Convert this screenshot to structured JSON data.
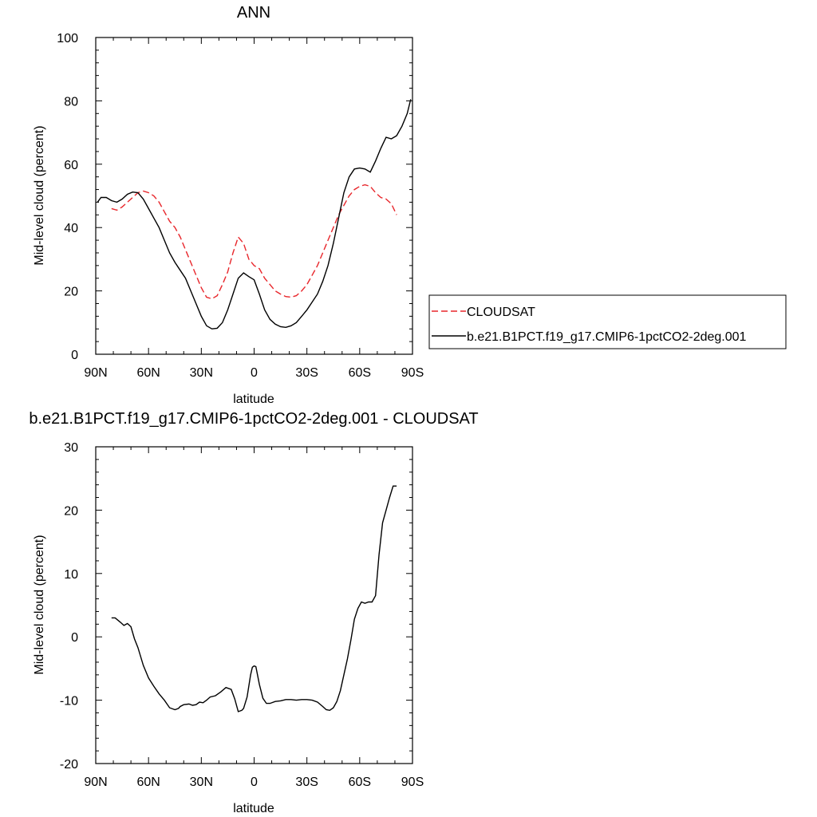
{
  "chart_data": [
    {
      "type": "line",
      "title": "ANN",
      "xlabel": "latitude",
      "ylabel": "Mid-level cloud (percent)",
      "xlim": [
        90,
        -90
      ],
      "ylim": [
        0,
        100
      ],
      "x_tick_values": [
        90,
        60,
        30,
        0,
        -30,
        -60,
        -90
      ],
      "x_tick_labels": [
        "90N",
        "60N",
        "30N",
        "0",
        "30S",
        "60S",
        "90S"
      ],
      "y_tick_values": [
        0,
        20,
        40,
        60,
        80,
        100
      ],
      "y_tick_labels": [
        "0",
        "20",
        "40",
        "60",
        "80",
        "100"
      ],
      "grid": false,
      "legend_position": "right",
      "series": [
        {
          "name": "CLOUDSAT",
          "color": "#e8262b",
          "dash": "dashed",
          "x": [
            81,
            78,
            75,
            72,
            69,
            66,
            63,
            60,
            57,
            54,
            51,
            48,
            45,
            42,
            39,
            36,
            33,
            30,
            27,
            24,
            21,
            18,
            15,
            12,
            9,
            6,
            3,
            0,
            -3,
            -6,
            -9,
            -12,
            -15,
            -18,
            -21,
            -24,
            -27,
            -30,
            -33,
            -36,
            -39,
            -42,
            -45,
            -48,
            -51,
            -54,
            -57,
            -60,
            -63,
            -66,
            -69,
            -72,
            -75,
            -78,
            -81
          ],
          "y": [
            46,
            45.5,
            46.5,
            48,
            49.5,
            51,
            51.5,
            51,
            50,
            48,
            45,
            42,
            40,
            37,
            33,
            29,
            25,
            21,
            18,
            17.5,
            18.5,
            22,
            26,
            32,
            37,
            35,
            30,
            28,
            27,
            24,
            22,
            20,
            19,
            18.2,
            18,
            18.5,
            20,
            22,
            25,
            28,
            32,
            36,
            40,
            44,
            47,
            50,
            52,
            53,
            53.5,
            53,
            51,
            49.5,
            49,
            47.5,
            44
          ]
        },
        {
          "name": "b.e21.B1PCT.f19_g17.CMIP6-1pctCO2-2deg.001",
          "color": "#000000",
          "dash": "solid",
          "x": [
            89,
            87,
            84,
            81,
            78,
            75,
            72,
            69,
            66,
            63,
            60,
            57,
            54,
            51,
            48,
            45,
            42,
            39,
            36,
            33,
            30,
            27,
            24,
            21,
            18,
            15,
            12,
            9,
            6,
            3,
            0,
            -3,
            -6,
            -9,
            -12,
            -15,
            -18,
            -21,
            -24,
            -27,
            -30,
            -33,
            -36,
            -39,
            -42,
            -45,
            -48,
            -51,
            -54,
            -57,
            -60,
            -63,
            -66,
            -69,
            -72,
            -75,
            -78,
            -81,
            -84,
            -87,
            -89
          ],
          "y": [
            48,
            49.5,
            49.5,
            48.5,
            48,
            49,
            50.5,
            51.2,
            51,
            49,
            46,
            43,
            40,
            36,
            32,
            29,
            26.5,
            24,
            20,
            16,
            12,
            9,
            8,
            8.2,
            10,
            14,
            19,
            24,
            25.7,
            24.5,
            23.5,
            19,
            14,
            11,
            9.5,
            8.7,
            8.5,
            9,
            10,
            12,
            14,
            16.5,
            19,
            23,
            28,
            35,
            43,
            51,
            56,
            58.5,
            58.8,
            58.5,
            57.5,
            61,
            65,
            68.5,
            68,
            69,
            72,
            76,
            80.5
          ]
        }
      ]
    },
    {
      "type": "line",
      "title": "b.e21.B1PCT.f19_g17.CMIP6-1pctCO2-2deg.001 - CLOUDSAT",
      "xlabel": "latitude",
      "ylabel": "Mid-level cloud (percent)",
      "xlim": [
        90,
        -90
      ],
      "ylim": [
        -20,
        30
      ],
      "x_tick_values": [
        90,
        60,
        30,
        0,
        -30,
        -60,
        -90
      ],
      "x_tick_labels": [
        "90N",
        "60N",
        "30N",
        "0",
        "30S",
        "60S",
        "90S"
      ],
      "y_tick_values": [
        -20,
        -10,
        0,
        10,
        20,
        30
      ],
      "y_tick_labels": [
        "-20",
        "-10",
        "0",
        "10",
        "20",
        "30"
      ],
      "grid": false,
      "series": [
        {
          "color": "#000000",
          "dash": "solid",
          "x": [
            81,
            79,
            76,
            74,
            72,
            70,
            68,
            66,
            63,
            60,
            57,
            54,
            51,
            48,
            45,
            43,
            42,
            40,
            37,
            35,
            33,
            31,
            29,
            27,
            25,
            22,
            19,
            16,
            13,
            11,
            9,
            7,
            6,
            4,
            2,
            1,
            0,
            -1,
            -3,
            -5,
            -7,
            -9,
            -12,
            -15,
            -18,
            -21,
            -24,
            -27,
            -30,
            -33,
            -36,
            -39,
            -41,
            -43,
            -45,
            -47,
            -49,
            -51,
            -53,
            -55,
            -57,
            -59,
            -61,
            -63,
            -65,
            -67,
            -69,
            -71,
            -73,
            -75,
            -77,
            -79,
            -81
          ],
          "y": [
            3,
            3,
            2.3,
            1.8,
            2.1,
            1.6,
            -0.3,
            -1.7,
            -4.5,
            -6.5,
            -7.8,
            -9,
            -10,
            -11.2,
            -11.5,
            -11.3,
            -11,
            -10.7,
            -10.6,
            -10.8,
            -10.7,
            -10.3,
            -10.4,
            -10,
            -9.5,
            -9.3,
            -8.7,
            -8,
            -8.3,
            -9.8,
            -11.8,
            -11.6,
            -11.3,
            -9.5,
            -6,
            -4.8,
            -4.6,
            -4.7,
            -7.5,
            -9.7,
            -10.5,
            -10.5,
            -10.2,
            -10.1,
            -9.9,
            -9.9,
            -10,
            -9.9,
            -9.9,
            -10,
            -10.3,
            -11,
            -11.5,
            -11.6,
            -11.2,
            -10.2,
            -8.5,
            -6,
            -3.5,
            -0.5,
            2.8,
            4.5,
            5.5,
            5.3,
            5.5,
            5.5,
            6.5,
            13,
            18,
            20,
            22,
            23.8,
            23.8
          ]
        }
      ]
    }
  ]
}
